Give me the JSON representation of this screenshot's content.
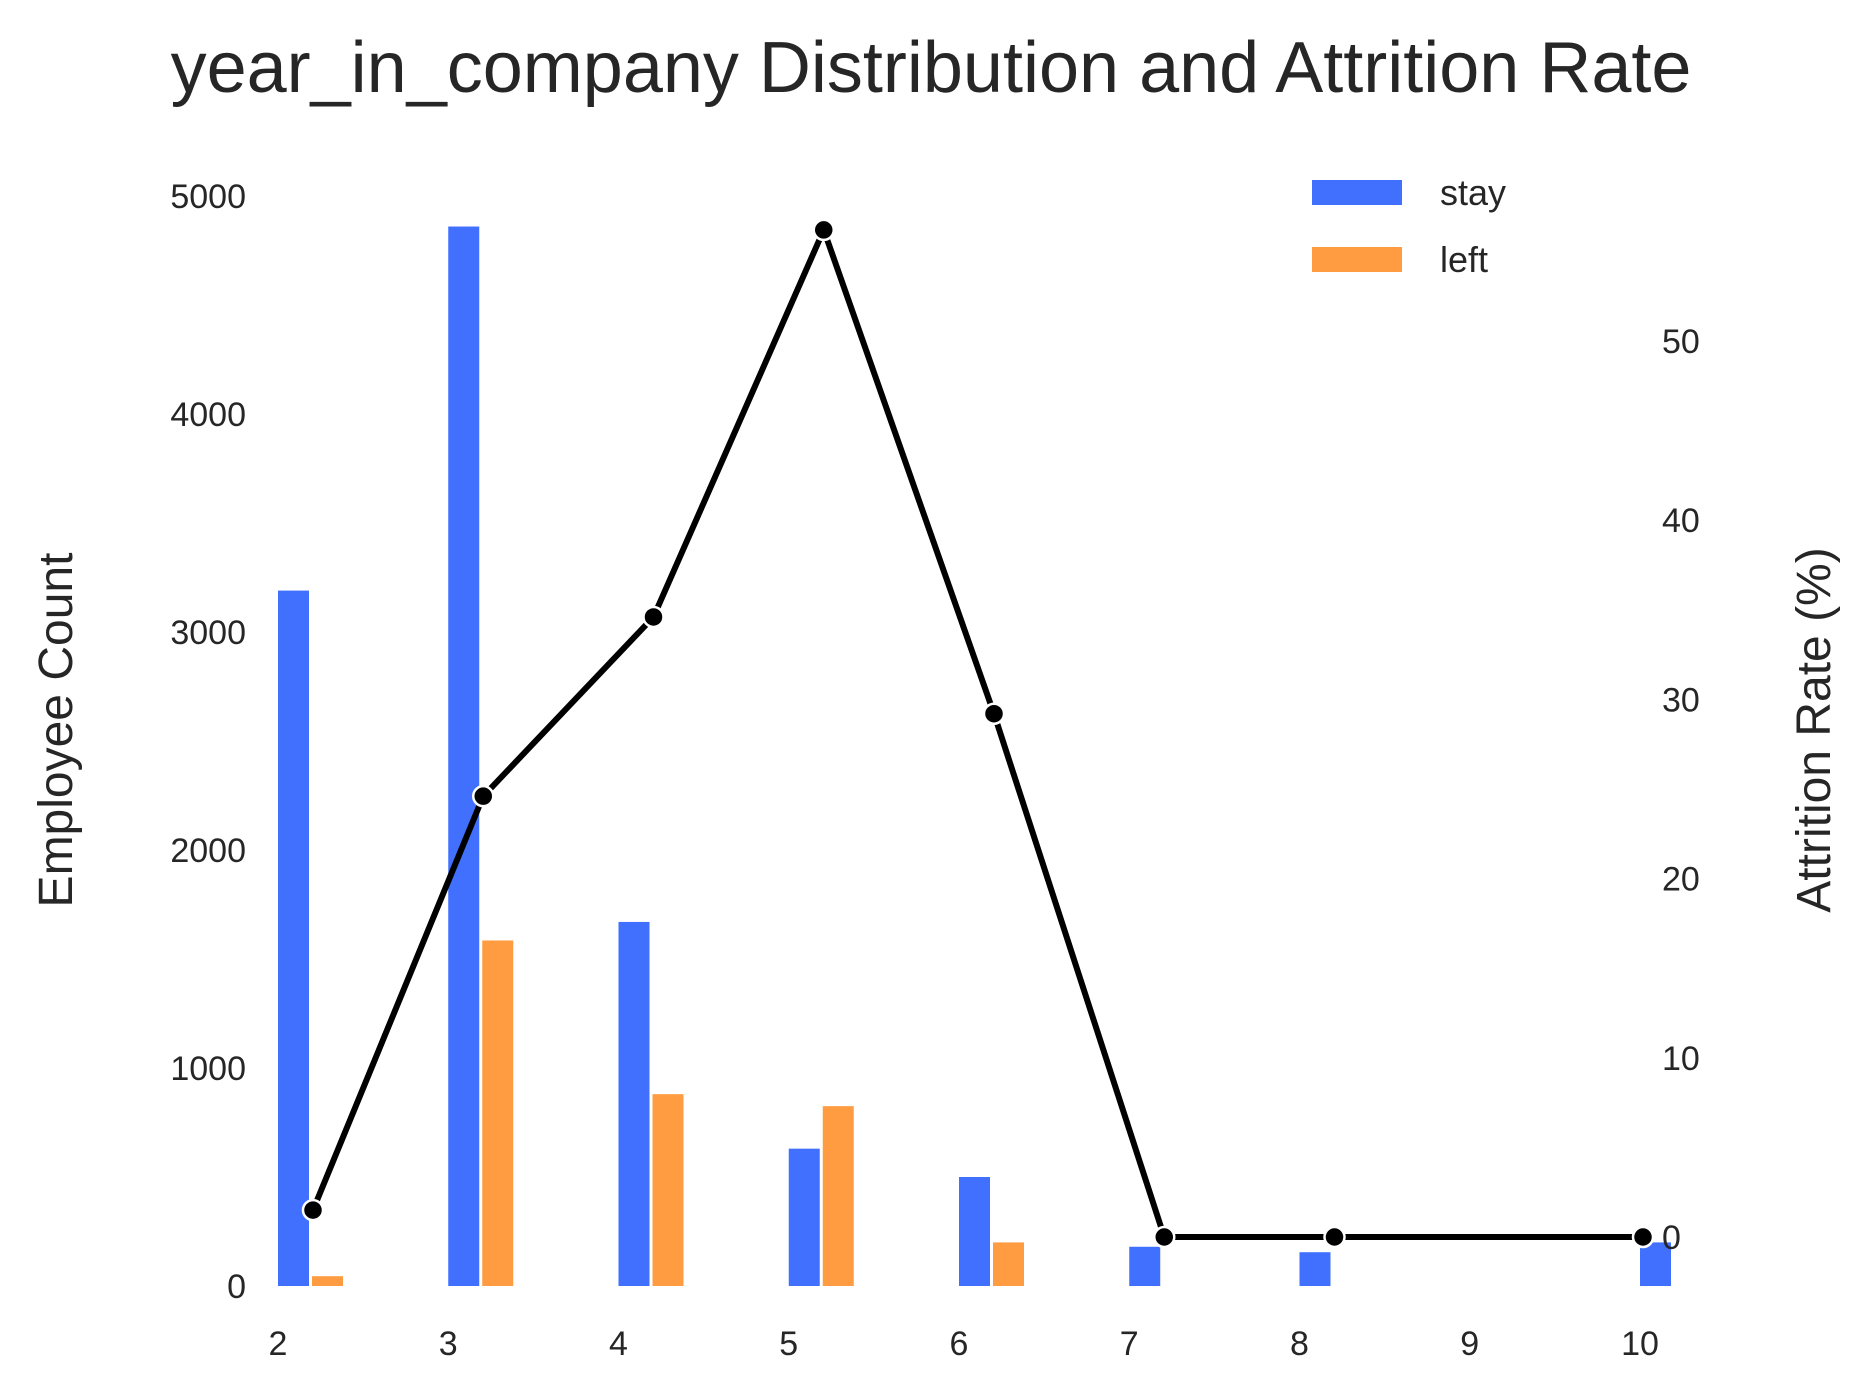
{
  "chart_data": {
    "type": "bar",
    "title": "year_in_company Distribution and Attrition Rate",
    "xlabel": "",
    "ylabel": "Employee Count",
    "y2label": "Attrition Rate (%)",
    "x_ticks": [
      "2",
      "3",
      "4",
      "5",
      "6",
      "7",
      "8",
      "9",
      "10"
    ],
    "y_ticks": [
      "0",
      "1000",
      "2000",
      "3000",
      "4000",
      "5000"
    ],
    "y2_ticks": [
      "0",
      "10",
      "20",
      "30",
      "40",
      "50"
    ],
    "xlim": [
      2,
      10
    ],
    "ylim": [
      0,
      5000
    ],
    "y2lim": [
      -3.5,
      58.5
    ],
    "grid": false,
    "legend_position": "top-right",
    "series": [
      {
        "name": "stay",
        "color": "#4170ff",
        "points": [
          [
            2,
            3190
          ],
          [
            3,
            4860
          ],
          [
            4,
            1670
          ],
          [
            5,
            630
          ],
          [
            6,
            500
          ],
          [
            7,
            180
          ],
          [
            8,
            155
          ],
          [
            10,
            200
          ]
        ]
      },
      {
        "name": "left",
        "color": "#ff9c41",
        "points": [
          [
            2,
            45
          ],
          [
            3,
            1585
          ],
          [
            4,
            880
          ],
          [
            5,
            825
          ],
          [
            6,
            200
          ]
        ]
      }
    ],
    "attrition_rate": {
      "name": "Attrition Rate (%)",
      "color": "#000000",
      "x": [
        2,
        3,
        4,
        5,
        6,
        7,
        8,
        10
      ],
      "y": [
        1.5,
        24.6,
        34.6,
        56.2,
        29.2,
        0,
        0,
        0
      ]
    }
  }
}
